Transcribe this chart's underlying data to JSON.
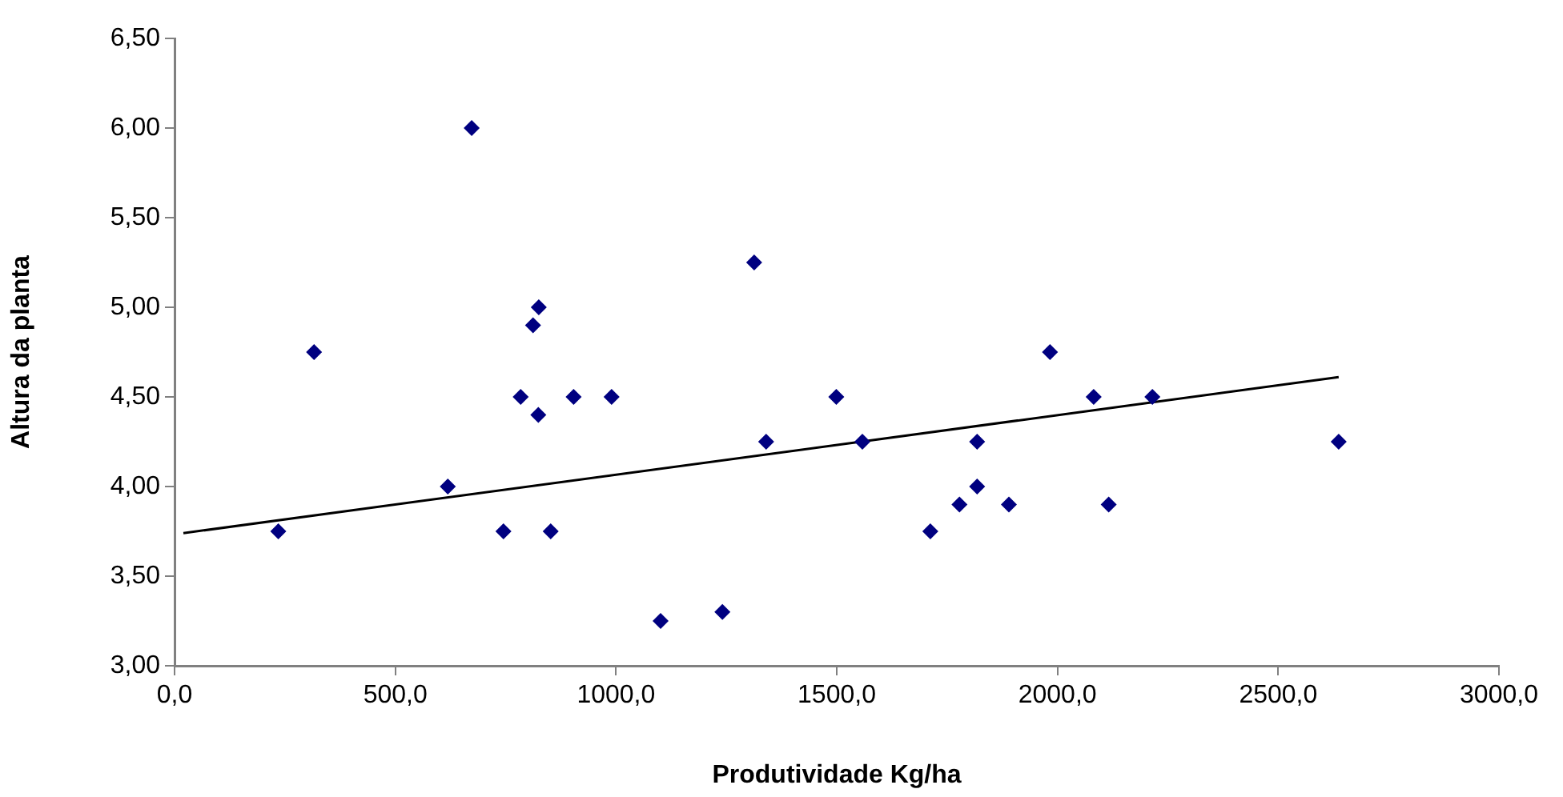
{
  "chart_data": {
    "type": "scatter",
    "xlabel": "Produtividade Kg/ha",
    "ylabel": "Altura da planta",
    "xlim": [
      0,
      3000
    ],
    "xticks": [
      {
        "value": 0,
        "label": "0,0"
      },
      {
        "value": 500,
        "label": "500,0"
      },
      {
        "value": 1000,
        "label": "1000,0"
      },
      {
        "value": 1500,
        "label": "1500,0"
      },
      {
        "value": 2000,
        "label": "2000,0"
      },
      {
        "value": 2500,
        "label": "2500,0"
      },
      {
        "value": 3000,
        "label": "3000,0"
      }
    ],
    "ylim": [
      3,
      6.5
    ],
    "yticks": [
      {
        "value": 3,
        "label": "3,00"
      },
      {
        "value": 3.5,
        "label": "3,50"
      },
      {
        "value": 4,
        "label": "4,00"
      },
      {
        "value": 4.5,
        "label": "4,50"
      },
      {
        "value": 5,
        "label": "5,00"
      },
      {
        "value": 5.5,
        "label": "5,50"
      },
      {
        "value": 6,
        "label": "6,00"
      },
      {
        "value": 6.5,
        "label": "6,50"
      }
    ],
    "grid": false,
    "legend": false,
    "series": [
      {
        "type": "scatter",
        "color": "#000080",
        "marker": "diamond",
        "x": [
          235,
          316,
          673,
          619,
          745,
          784,
          812,
          825,
          824,
          852,
          904,
          990,
          1101,
          1241,
          1313,
          1340,
          1499,
          1558,
          1712,
          1778,
          1818,
          1818,
          1890,
          1983,
          2082,
          2116,
          2215,
          2637
        ],
        "values": [
          3.75,
          4.75,
          6.0,
          4.0,
          3.75,
          4.5,
          4.9,
          5.0,
          4.4,
          3.75,
          4.5,
          4.5,
          3.25,
          3.3,
          5.25,
          4.25,
          4.5,
          4.25,
          3.75,
          3.9,
          4.0,
          4.25,
          3.9,
          4.75,
          4.5,
          3.9,
          4.5,
          4.25
        ]
      },
      {
        "type": "line",
        "color": "#000000",
        "marker": "none",
        "line_style": "solid",
        "x": [
          20,
          2637
        ],
        "values": [
          3.74,
          4.61
        ]
      }
    ]
  }
}
